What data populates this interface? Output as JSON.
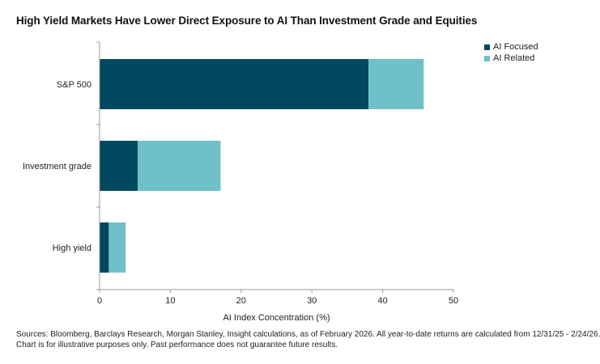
{
  "title": "High Yield Markets Have Lower Direct Exposure to AI Than Investment Grade and Equities",
  "colors": {
    "ai_focused": "#00485F",
    "ai_related": "#6FC0C8",
    "axis": "#9a9a9a"
  },
  "chart_data": {
    "type": "bar",
    "orientation": "horizontal",
    "stacked": true,
    "categories": [
      "S&P 500",
      "Investment grade",
      "High yield"
    ],
    "series": [
      {
        "name": "AI Focused",
        "values": [
          38.0,
          5.4,
          1.3
        ]
      },
      {
        "name": "AI Related",
        "values": [
          7.8,
          11.7,
          2.4
        ]
      }
    ],
    "xlabel": "AI Index Concentration (%)",
    "ylabel": "",
    "xlim": [
      0,
      50
    ],
    "xticks": [
      0,
      10,
      20,
      30,
      40,
      50
    ],
    "grid": false,
    "legend_position": "top-right"
  },
  "footnote": {
    "line1": "Sources: Bloomberg, Barclays Research, Morgan Stanley, Insight calculations, as of February 2026. All year-to-date returns are calculated from 12/31/25 - 2/24/26.",
    "line2": "Chart is for illustrative purposes only. Past performance does not guarantee future results."
  }
}
